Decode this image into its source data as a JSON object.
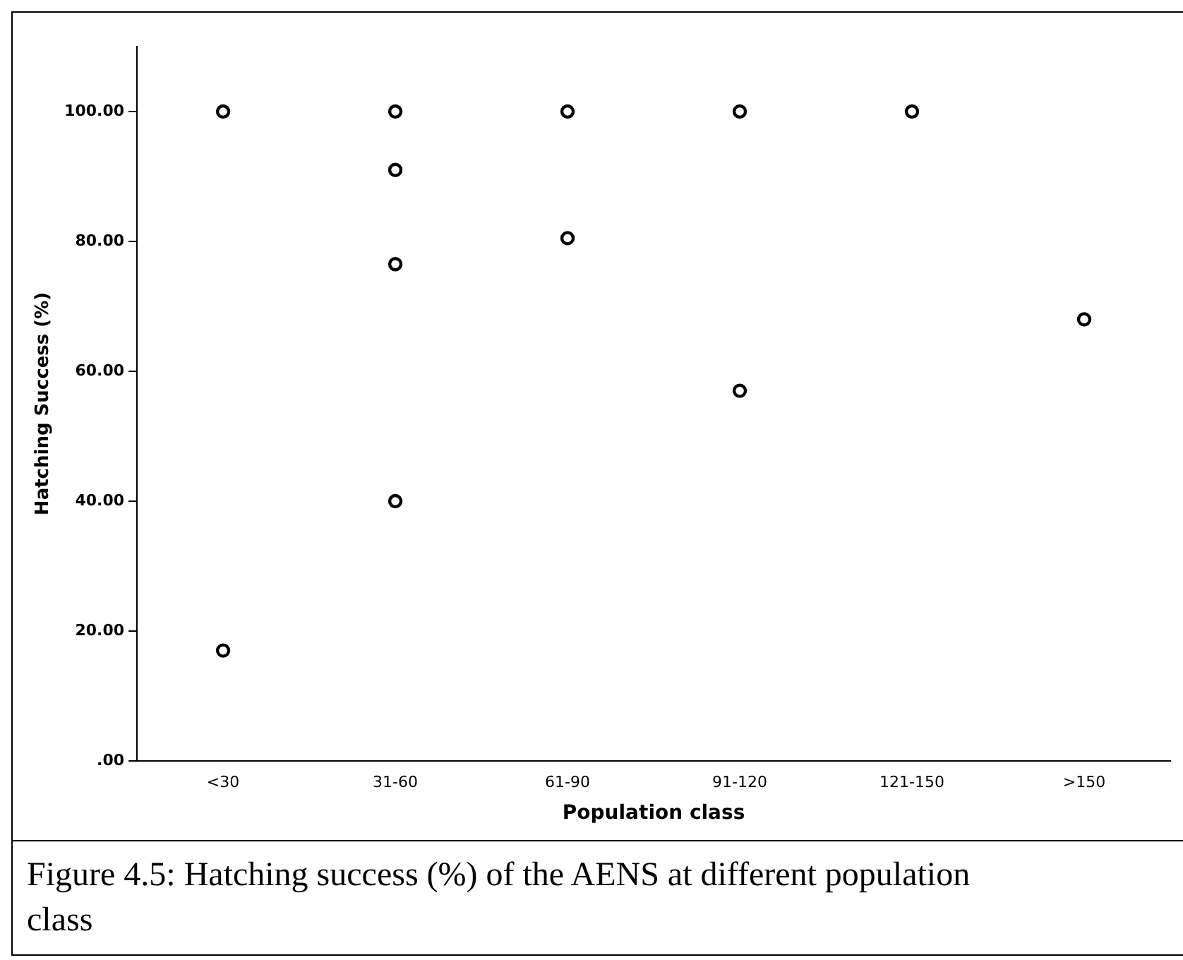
{
  "chart_data": {
    "type": "scatter",
    "xlabel": "Population class",
    "ylabel": "Hatching Success (%)",
    "categories": [
      "<30",
      "31-60",
      "61-90",
      "91-120",
      "121-150",
      ">150"
    ],
    "series": [
      {
        "color": "#000000",
        "values": [
          100,
          100,
          100,
          100,
          100,
          null
        ]
      },
      {
        "color": "#000000",
        "values": [
          17,
          91,
          80.5,
          57,
          null,
          68
        ]
      },
      {
        "color": "#000000",
        "values": [
          null,
          76.5,
          null,
          null,
          null,
          null
        ]
      },
      {
        "color": "#000000",
        "values": [
          null,
          40,
          null,
          null,
          null,
          null
        ]
      }
    ],
    "ylim": [
      0,
      110
    ],
    "yticks": [
      {
        "value": 0,
        "label": ".00"
      },
      {
        "value": 20,
        "label": "20.00"
      },
      {
        "value": 40,
        "label": "40.00"
      },
      {
        "value": 60,
        "label": "60.00"
      },
      {
        "value": 80,
        "label": "80.00"
      },
      {
        "value": 100,
        "label": "100.00"
      }
    ],
    "grid": false,
    "legend": false,
    "marker": "circle",
    "annotations": [
      "Figure 4.5: Hatching success (%) of the AENS at different population class"
    ]
  }
}
